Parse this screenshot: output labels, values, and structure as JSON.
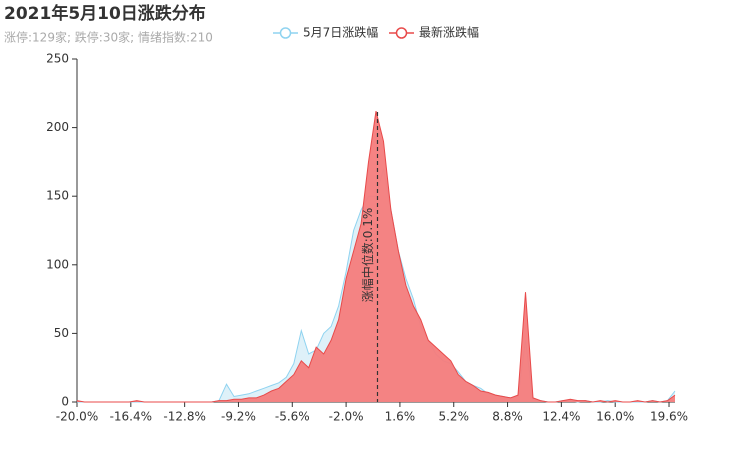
{
  "chart_data": {
    "type": "area",
    "title": "2021年5月10日涨跌分布",
    "subtitle": "涨停:129家; 跌停:30家; 情绪指数:210",
    "x": [
      -20,
      -19.5,
      -19,
      -18.5,
      -18,
      -17.5,
      -17,
      -16.5,
      -16,
      -15.5,
      -15,
      -14.5,
      -14,
      -13.5,
      -13,
      -12.5,
      -12,
      -11.5,
      -11,
      -10.5,
      -10,
      -9.5,
      -9,
      -8.5,
      -8,
      -7.5,
      -7,
      -6.5,
      -6,
      -5.5,
      -5,
      -4.5,
      -4,
      -3.5,
      -3,
      -2.5,
      -2,
      -1.5,
      -1,
      -0.5,
      0,
      0.5,
      1,
      1.5,
      2,
      2.5,
      3,
      3.5,
      4,
      4.5,
      5,
      5.5,
      6,
      6.5,
      7,
      7.5,
      8,
      8.5,
      9,
      9.5,
      10,
      10.5,
      11,
      11.5,
      12,
      12.5,
      13,
      13.5,
      14,
      14.5,
      15,
      15.5,
      16,
      16.5,
      17,
      17.5,
      18,
      18.5,
      19,
      19.5,
      20
    ],
    "series": [
      {
        "name": "5月7日涨跌幅",
        "color": "#8fd3f0",
        "fill": "#d6eef8",
        "values": [
          0,
          0,
          0,
          0,
          0,
          0,
          0,
          0,
          0,
          0,
          0,
          0,
          0,
          0,
          0,
          0,
          0,
          0,
          0,
          1,
          13,
          4,
          5,
          6,
          8,
          10,
          12,
          14,
          18,
          28,
          52,
          35,
          38,
          50,
          55,
          70,
          95,
          125,
          140,
          150,
          150,
          170,
          140,
          110,
          90,
          75,
          55,
          45,
          35,
          30,
          28,
          22,
          15,
          12,
          10,
          6,
          5,
          4,
          3,
          4,
          45,
          2,
          1,
          0,
          0,
          1,
          1,
          0,
          1,
          0,
          0,
          1,
          0,
          0,
          0,
          0,
          0,
          1,
          0,
          1,
          8
        ]
      },
      {
        "name": "最新涨跌幅",
        "color": "#e84a4a",
        "fill": "#f47c7c",
        "values": [
          1,
          0,
          0,
          0,
          0,
          0,
          0,
          0,
          1,
          0,
          0,
          0,
          0,
          0,
          0,
          0,
          0,
          0,
          0,
          1,
          1,
          2,
          2,
          3,
          3,
          5,
          8,
          10,
          15,
          20,
          30,
          25,
          40,
          35,
          45,
          60,
          90,
          110,
          130,
          175,
          212,
          190,
          140,
          110,
          85,
          70,
          60,
          45,
          40,
          35,
          30,
          20,
          15,
          12,
          8,
          7,
          5,
          4,
          3,
          5,
          80,
          3,
          1,
          0,
          0,
          1,
          2,
          1,
          1,
          0,
          1,
          0,
          1,
          0,
          0,
          1,
          0,
          1,
          0,
          1,
          5
        ]
      }
    ],
    "markline": {
      "value": 0.1,
      "label": "涨幅中位数:0.1%"
    },
    "xlim": [
      -20,
      20
    ],
    "xticks": [
      {
        "value": -20,
        "label": "-20.0%"
      },
      {
        "value": -16.4,
        "label": "-16.4%"
      },
      {
        "value": -12.8,
        "label": "-12.8%"
      },
      {
        "value": -9.2,
        "label": "-9.2%"
      },
      {
        "value": -5.6,
        "label": "-5.6%"
      },
      {
        "value": -2,
        "label": "-2.0%"
      },
      {
        "value": 1.6,
        "label": "1.6%"
      },
      {
        "value": 5.2,
        "label": "5.2%"
      },
      {
        "value": 8.8,
        "label": "8.8%"
      },
      {
        "value": 12.4,
        "label": "12.4%"
      },
      {
        "value": 16,
        "label": "16.0%"
      },
      {
        "value": 19.6,
        "label": "19.6%"
      }
    ],
    "ylim": [
      0,
      250
    ],
    "yticks": [
      0,
      50,
      100,
      150,
      200,
      250
    ]
  }
}
